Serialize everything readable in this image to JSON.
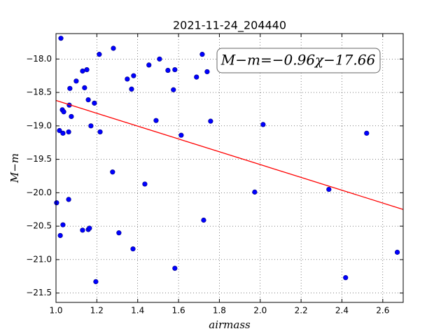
{
  "chart_data": {
    "type": "scatter",
    "title": "2021-11-24_204440",
    "x_label": "airmass",
    "y_label": "M−m",
    "annotation": "M−m=−0.96χ−17.66",
    "xlim": [
      1.0,
      2.7
    ],
    "ylim": [
      -17.62,
      -21.64
    ],
    "xticks": [
      {
        "value": 1.0,
        "label": "1.0"
      },
      1.2,
      1.4,
      1.6,
      1.8,
      {
        "value": 2.0,
        "label": "2.0"
      },
      2.2,
      2.4,
      2.6
    ],
    "yticks": [
      {
        "value": -18.0,
        "label": "−18.0"
      },
      {
        "value": -18.5,
        "label": "−18.5"
      },
      {
        "value": -19.0,
        "label": "−19.0"
      },
      {
        "value": -19.5,
        "label": "−19.5"
      },
      {
        "value": -20.0,
        "label": "−20.0"
      },
      {
        "value": -20.5,
        "label": "−20.5"
      },
      {
        "value": -21.0,
        "label": "−21.0"
      },
      {
        "value": -21.5,
        "label": "−21.5"
      }
    ],
    "grid": true,
    "color": "#0000ff",
    "x": [
      1.024,
      1.003,
      1.017,
      1.021,
      1.031,
      1.038,
      1.034,
      1.034,
      1.062,
      1.062,
      1.065,
      1.068,
      1.075,
      1.099,
      1.13,
      1.14,
      1.151,
      1.158,
      1.13,
      1.158,
      1.164,
      1.171,
      1.188,
      1.195,
      1.212,
      1.216,
      1.277,
      1.281,
      1.308,
      1.349,
      1.37,
      1.377,
      1.38,
      1.435,
      1.455,
      1.49,
      1.507,
      1.548,
      1.575,
      1.582,
      1.582,
      1.613,
      1.688,
      1.716,
      1.723,
      1.74,
      1.757,
      1.973,
      2.014,
      2.336,
      2.418,
      2.521,
      2.671
    ],
    "values": [
      -17.69,
      -20.15,
      -19.07,
      -20.64,
      -18.76,
      -18.79,
      -19.11,
      -20.48,
      -20.1,
      -19.09,
      -18.69,
      -18.44,
      -18.86,
      -18.33,
      -18.18,
      -18.43,
      -18.16,
      -18.61,
      -20.56,
      -20.55,
      -20.53,
      -19.0,
      -18.66,
      -21.33,
      -17.93,
      -19.09,
      -19.69,
      -17.84,
      -20.6,
      -18.3,
      -18.45,
      -20.84,
      -18.25,
      -19.87,
      -18.09,
      -18.92,
      -18.0,
      -18.17,
      -18.46,
      -18.16,
      -21.13,
      -19.14,
      -18.27,
      -17.93,
      -20.41,
      -18.19,
      -18.93,
      -19.99,
      -18.98,
      -19.95,
      -21.27,
      -19.11,
      -20.89
    ],
    "fit": {
      "color": "#ff0000",
      "x": [
        1.0,
        2.7
      ],
      "values": [
        -18.62,
        -20.25
      ]
    }
  }
}
